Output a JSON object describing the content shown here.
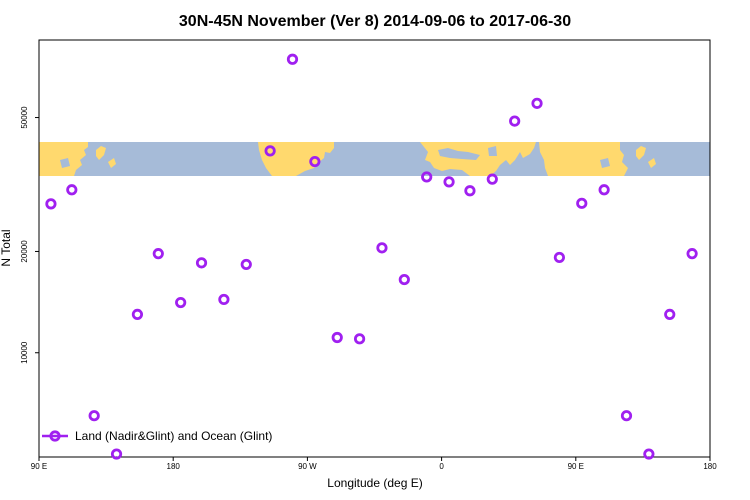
{
  "chart_data": {
    "type": "scatter",
    "title": "30N-45N November (Ver 8)   2014-09-06 to 2017-06-30",
    "xlabel": "Longitude (deg E)",
    "ylabel": "N Total",
    "x_ticks": [
      {
        "value": 90,
        "label": "90 E"
      },
      {
        "value": 180,
        "label": "180"
      },
      {
        "value": 270,
        "label": "90 W"
      },
      {
        "value": 360,
        "label": "0"
      },
      {
        "value": 450,
        "label": "90 E"
      },
      {
        "value": 540,
        "label": "180"
      }
    ],
    "y_ticks": [
      10000,
      20000,
      50000
    ],
    "y_scale": "log",
    "xlim": [
      90,
      540
    ],
    "ylim": [
      4900,
      85000
    ],
    "grid": false,
    "background_map": {
      "latitude_band": "30N-45N",
      "land_color": "#FFD96E",
      "ocean_color": "#A6BBD8"
    },
    "legend": {
      "position": "bottom-left",
      "label": "Land (Nadir&Glint) and Ocean (Glint)"
    },
    "marker_color": "#A020F0",
    "series": [
      {
        "name": "Land (Nadir&Glint) and Ocean (Glint)",
        "x": [
          98,
          112,
          127,
          142,
          156,
          170,
          185,
          199,
          214,
          229,
          245,
          260,
          275,
          290,
          305,
          320,
          335,
          350,
          365,
          379,
          394,
          409,
          424,
          439,
          454,
          469,
          484,
          499,
          513,
          528
        ],
        "y": [
          27700,
          30500,
          6500,
          5000,
          13000,
          19700,
          14100,
          18500,
          14400,
          18300,
          39800,
          74500,
          37000,
          11100,
          11000,
          20500,
          16500,
          33300,
          32200,
          30300,
          32800,
          48800,
          55100,
          19200,
          27800,
          30500,
          6500,
          5000,
          13000,
          19700
        ]
      }
    ]
  }
}
